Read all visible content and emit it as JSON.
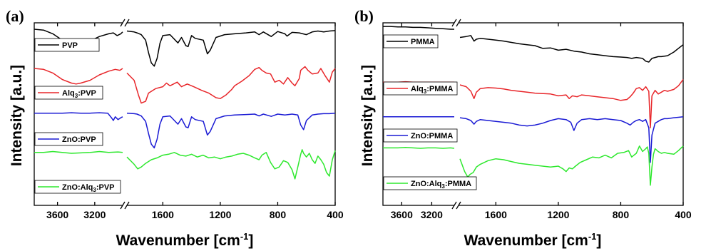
{
  "chart_data": [
    {
      "type": "line",
      "panel_label": "(a)",
      "ylabel": "Intensity [a.u.]",
      "xlabel": "Wavenumber [cm",
      "xlabel_sup": "-1",
      "xlabel_end": "]",
      "yticks": "none",
      "x_reversed": true,
      "broken_axis": true,
      "break_range": [
        1850,
        2900
      ],
      "left_segment": {
        "xlim": [
          3850,
          2900
        ],
        "ticks": [
          3600,
          3200
        ]
      },
      "right_segment": {
        "xlim": [
          1850,
          400
        ],
        "ticks": [
          1600,
          1200,
          800,
          400
        ]
      },
      "ylim": [
        0,
        4
      ],
      "series": [
        {
          "name": "PVP",
          "legend_parts": [
            [
              "PVP",
              ""
            ]
          ],
          "color": "#000000",
          "x": [
            3850,
            3750,
            3650,
            3550,
            3450,
            3400,
            3350,
            3250,
            3150,
            3050,
            3000,
            2960,
            2920,
            2900,
            1850,
            1800,
            1780,
            1750,
            1720,
            1700,
            1680,
            1660,
            1640,
            1620,
            1600,
            1550,
            1495,
            1470,
            1440,
            1424,
            1400,
            1375,
            1318,
            1290,
            1270,
            1230,
            1170,
            1100,
            1020,
            960,
            930,
            900,
            845,
            800,
            750,
            735,
            700,
            650,
            600,
            560,
            520,
            480,
            440,
            400
          ],
          "y": [
            3.86,
            3.84,
            3.76,
            3.62,
            3.52,
            3.5,
            3.52,
            3.6,
            3.7,
            3.76,
            3.78,
            3.72,
            3.76,
            3.8,
            3.82,
            3.8,
            3.78,
            3.74,
            3.62,
            3.35,
            3.12,
            3.05,
            3.22,
            3.55,
            3.72,
            3.74,
            3.56,
            3.68,
            3.5,
            3.48,
            3.72,
            3.66,
            3.62,
            3.32,
            3.4,
            3.68,
            3.74,
            3.76,
            3.78,
            3.8,
            3.74,
            3.8,
            3.7,
            3.81,
            3.76,
            3.71,
            3.79,
            3.78,
            3.74,
            3.8,
            3.82,
            3.8,
            3.82,
            3.83
          ]
        },
        {
          "name": "Alq3:PVP",
          "legend_parts": [
            [
              "Alq",
              ""
            ],
            [
              "3",
              "sub"
            ],
            [
              ":PVP",
              ""
            ]
          ],
          "color": "#e8262a",
          "x": [
            3850,
            3750,
            3650,
            3550,
            3450,
            3400,
            3350,
            3250,
            3150,
            3050,
            2980,
            2930,
            2900,
            1850,
            1800,
            1770,
            1750,
            1720,
            1700,
            1650,
            1600,
            1575,
            1550,
            1500,
            1470,
            1430,
            1385,
            1330,
            1280,
            1230,
            1200,
            1160,
            1120,
            1100,
            1050,
            1000,
            960,
            930,
            910,
            880,
            850,
            820,
            790,
            760,
            730,
            700,
            680,
            650,
            640,
            610,
            590,
            560,
            520,
            500,
            470,
            440,
            420,
            400
          ],
          "y": [
            3.0,
            2.98,
            2.9,
            2.76,
            2.68,
            2.66,
            2.68,
            2.74,
            2.86,
            2.94,
            2.98,
            2.96,
            3.0,
            2.9,
            2.74,
            2.42,
            2.24,
            2.28,
            2.46,
            2.56,
            2.6,
            2.68,
            2.62,
            2.7,
            2.6,
            2.66,
            2.6,
            2.52,
            2.46,
            2.36,
            2.34,
            2.42,
            2.54,
            2.62,
            2.72,
            2.84,
            2.98,
            3.02,
            2.96,
            2.9,
            2.88,
            2.7,
            2.74,
            2.66,
            2.8,
            2.68,
            2.62,
            2.78,
            2.96,
            3.04,
            2.96,
            2.88,
            2.9,
            3.0,
            2.84,
            2.7,
            2.92,
            3.0
          ]
        },
        {
          "name": "ZnO:PVP",
          "legend_parts": [
            [
              "ZnO:PVP",
              ""
            ]
          ],
          "color": "#1a1ad4",
          "x": [
            3850,
            3750,
            3650,
            3550,
            3450,
            3350,
            3250,
            3150,
            3060,
            3020,
            3000,
            2980,
            2950,
            2920,
            2900,
            1850,
            1800,
            1780,
            1750,
            1720,
            1700,
            1680,
            1660,
            1640,
            1620,
            1600,
            1550,
            1495,
            1470,
            1440,
            1424,
            1400,
            1375,
            1318,
            1290,
            1270,
            1230,
            1170,
            1100,
            1020,
            960,
            930,
            900,
            845,
            800,
            750,
            700,
            660,
            640,
            620,
            600,
            560,
            520,
            480,
            440,
            400
          ],
          "y": [
            2.02,
            2.02,
            2.02,
            2.02,
            2.03,
            2.02,
            2.02,
            2.03,
            2.02,
            1.92,
            1.86,
            1.94,
            1.88,
            1.92,
            1.94,
            2.02,
            2.01,
            2.0,
            1.96,
            1.84,
            1.58,
            1.34,
            1.26,
            1.45,
            1.78,
            1.94,
            1.96,
            1.78,
            1.9,
            1.72,
            1.7,
            1.94,
            1.88,
            1.84,
            1.54,
            1.62,
            1.9,
            1.96,
            1.98,
            1.99,
            2.0,
            1.96,
            2.0,
            1.95,
            2.0,
            1.98,
            2.0,
            1.98,
            1.76,
            1.66,
            1.86,
            1.98,
            2.0,
            2.01,
            2.01,
            2.02
          ]
        },
        {
          "name": "ZnO:Alq3:PVP",
          "legend_parts": [
            [
              "ZnO:Alq",
              ""
            ],
            [
              "3",
              "sub"
            ],
            [
              ":PVP",
              ""
            ]
          ],
          "color": "#2ee82e",
          "x": [
            3850,
            3750,
            3650,
            3550,
            3450,
            3350,
            3250,
            3150,
            3050,
            2950,
            2900,
            1850,
            1800,
            1775,
            1750,
            1720,
            1680,
            1640,
            1600,
            1560,
            1520,
            1480,
            1440,
            1400,
            1360,
            1320,
            1280,
            1240,
            1200,
            1160,
            1120,
            1080,
            1040,
            1000,
            960,
            930,
            910,
            880,
            850,
            820,
            790,
            760,
            730,
            700,
            680,
            660,
            640,
            630,
            620,
            600,
            580,
            560,
            540,
            520,
            500,
            480,
            460,
            440,
            420,
            400
          ],
          "y": [
            1.16,
            1.16,
            1.18,
            1.16,
            1.14,
            1.15,
            1.16,
            1.18,
            1.16,
            1.17,
            1.16,
            1.06,
            0.9,
            0.8,
            0.84,
            0.92,
            1.0,
            1.04,
            1.1,
            1.12,
            1.16,
            1.1,
            1.08,
            1.12,
            1.06,
            1.1,
            1.04,
            1.06,
            1.02,
            1.06,
            1.08,
            1.12,
            1.14,
            1.1,
            1.04,
            1.0,
            1.1,
            1.16,
            0.94,
            0.8,
            0.84,
            0.98,
            0.94,
            0.78,
            0.58,
            0.84,
            1.12,
            1.22,
            1.14,
            1.06,
            1.14,
            1.0,
            0.92,
            1.08,
            1.0,
            0.9,
            0.72,
            0.64,
            1.0,
            1.2
          ]
        }
      ]
    },
    {
      "type": "line",
      "panel_label": "(b)",
      "ylabel": "Intensity [a.u.]",
      "xlabel": "Wavenumber [cm",
      "xlabel_sup": "-1",
      "xlabel_end": "]",
      "yticks": "none",
      "x_reversed": true,
      "broken_axis": true,
      "break_range": [
        1830,
        2900
      ],
      "left_segment": {
        "xlim": [
          3850,
          2900
        ],
        "ticks": [
          3600,
          3200
        ]
      },
      "right_segment": {
        "xlim": [
          1830,
          400
        ],
        "ticks": [
          1600,
          1200,
          800,
          400
        ]
      },
      "ylim": [
        0,
        4
      ],
      "series": [
        {
          "name": "PMMA",
          "legend_parts": [
            [
              "PMMA",
              ""
            ]
          ],
          "color": "#000000",
          "x": [
            3850,
            3750,
            3650,
            3550,
            3450,
            3350,
            3250,
            3150,
            3050,
            2950,
            2900,
            1830,
            1790,
            1760,
            1740,
            1725,
            1700,
            1650,
            1600,
            1550,
            1500,
            1450,
            1400,
            1350,
            1300,
            1250,
            1200,
            1150,
            1100,
            1050,
            1000,
            950,
            900,
            850,
            800,
            760,
            730,
            700,
            680,
            660,
            640,
            620,
            600,
            580,
            560,
            540,
            500,
            460,
            430,
            400
          ],
          "y": [
            3.92,
            3.92,
            3.91,
            3.91,
            3.9,
            3.9,
            3.89,
            3.88,
            3.87,
            3.86,
            3.86,
            3.68,
            3.7,
            3.72,
            3.6,
            3.64,
            3.66,
            3.64,
            3.62,
            3.6,
            3.57,
            3.54,
            3.52,
            3.5,
            3.44,
            3.45,
            3.4,
            3.42,
            3.38,
            3.36,
            3.32,
            3.3,
            3.28,
            3.26,
            3.25,
            3.24,
            3.22,
            3.24,
            3.23,
            3.22,
            3.16,
            3.14,
            3.22,
            3.24,
            3.26,
            3.26,
            3.28,
            3.36,
            3.44,
            3.52
          ]
        },
        {
          "name": "Alq3:PMMA",
          "legend_parts": [
            [
              "Alq",
              ""
            ],
            [
              "3",
              "sub"
            ],
            [
              ":PMMA",
              ""
            ]
          ],
          "color": "#e8262a",
          "x": [
            3850,
            3750,
            3650,
            3550,
            3450,
            3350,
            3250,
            3150,
            3050,
            2950,
            2900,
            1830,
            1790,
            1760,
            1740,
            1725,
            1700,
            1650,
            1600,
            1550,
            1500,
            1450,
            1400,
            1350,
            1300,
            1250,
            1200,
            1150,
            1130,
            1110,
            1080,
            1050,
            1000,
            950,
            900,
            850,
            800,
            760,
            740,
            720,
            700,
            680,
            660,
            640,
            620,
            610,
            600,
            580,
            560,
            540,
            520,
            500,
            460,
            430,
            400
          ],
          "y": [
            2.7,
            2.7,
            2.7,
            2.71,
            2.7,
            2.7,
            2.7,
            2.7,
            2.7,
            2.7,
            2.7,
            2.64,
            2.6,
            2.5,
            2.34,
            2.48,
            2.56,
            2.58,
            2.57,
            2.55,
            2.52,
            2.5,
            2.48,
            2.46,
            2.45,
            2.44,
            2.4,
            2.42,
            2.34,
            2.4,
            2.38,
            2.42,
            2.4,
            2.38,
            2.36,
            2.34,
            2.3,
            2.32,
            2.38,
            2.46,
            2.56,
            2.58,
            2.52,
            2.6,
            2.5,
            1.7,
            2.4,
            2.52,
            2.44,
            2.48,
            2.52,
            2.5,
            2.54,
            2.62,
            2.76
          ]
        },
        {
          "name": "ZnO:PMMA",
          "legend_parts": [
            [
              "ZnO:PMMA",
              ""
            ]
          ],
          "color": "#1a1ad4",
          "x": [
            3850,
            3750,
            3650,
            3550,
            3450,
            3350,
            3250,
            3150,
            3050,
            2950,
            2900,
            1830,
            1790,
            1760,
            1740,
            1725,
            1700,
            1650,
            1600,
            1550,
            1500,
            1450,
            1400,
            1350,
            1300,
            1250,
            1200,
            1150,
            1120,
            1100,
            1080,
            1050,
            1000,
            950,
            900,
            850,
            800,
            760,
            740,
            720,
            700,
            680,
            660,
            640,
            620,
            610,
            600,
            580,
            560,
            540,
            520,
            500,
            460,
            430,
            400
          ],
          "y": [
            1.94,
            1.94,
            1.94,
            1.94,
            1.94,
            1.94,
            1.94,
            1.94,
            1.94,
            1.94,
            1.94,
            1.92,
            1.9,
            1.86,
            1.78,
            1.84,
            1.88,
            1.86,
            1.84,
            1.82,
            1.8,
            1.76,
            1.74,
            1.76,
            1.8,
            1.86,
            1.9,
            1.88,
            1.82,
            1.64,
            1.8,
            1.88,
            1.9,
            1.88,
            1.9,
            1.88,
            1.86,
            1.8,
            1.76,
            1.82,
            1.86,
            1.88,
            1.84,
            1.88,
            1.7,
            0.94,
            1.54,
            1.8,
            1.84,
            1.88,
            1.9,
            1.9,
            1.92,
            1.93,
            1.94
          ]
        },
        {
          "name": "ZnO:Alq3:PMMA",
          "legend_parts": [
            [
              "ZnO:Alq",
              ""
            ],
            [
              "3",
              "sub"
            ],
            [
              ":PMMA",
              ""
            ]
          ],
          "color": "#2ee82e",
          "x": [
            3850,
            3750,
            3650,
            3550,
            3450,
            3350,
            3250,
            3150,
            3050,
            2950,
            2900,
            1830,
            1800,
            1780,
            1765,
            1745,
            1725,
            1700,
            1650,
            1600,
            1550,
            1500,
            1450,
            1400,
            1350,
            1300,
            1250,
            1200,
            1170,
            1150,
            1130,
            1110,
            1090,
            1060,
            1020,
            980,
            940,
            900,
            860,
            820,
            780,
            750,
            730,
            700,
            690,
            680,
            660,
            640,
            630,
            620,
            610,
            600,
            590,
            580,
            560,
            540,
            520,
            500,
            460,
            430,
            400
          ],
          "y": [
            1.26,
            1.26,
            1.26,
            1.27,
            1.26,
            1.25,
            1.26,
            1.26,
            1.25,
            1.26,
            1.25,
            1.02,
            0.74,
            0.62,
            0.68,
            0.72,
            0.84,
            0.9,
            0.98,
            1.02,
            1.0,
            0.96,
            0.92,
            0.9,
            0.88,
            0.86,
            0.84,
            0.86,
            0.8,
            0.74,
            0.82,
            0.8,
            0.86,
            0.94,
            1.0,
            1.06,
            1.04,
            1.1,
            1.04,
            1.14,
            1.16,
            1.2,
            1.06,
            1.14,
            1.22,
            1.3,
            1.18,
            1.24,
            1.28,
            1.14,
            0.44,
            0.84,
            1.12,
            1.24,
            1.18,
            1.14,
            1.16,
            1.14,
            1.12,
            1.2,
            1.3
          ]
        }
      ]
    }
  ]
}
